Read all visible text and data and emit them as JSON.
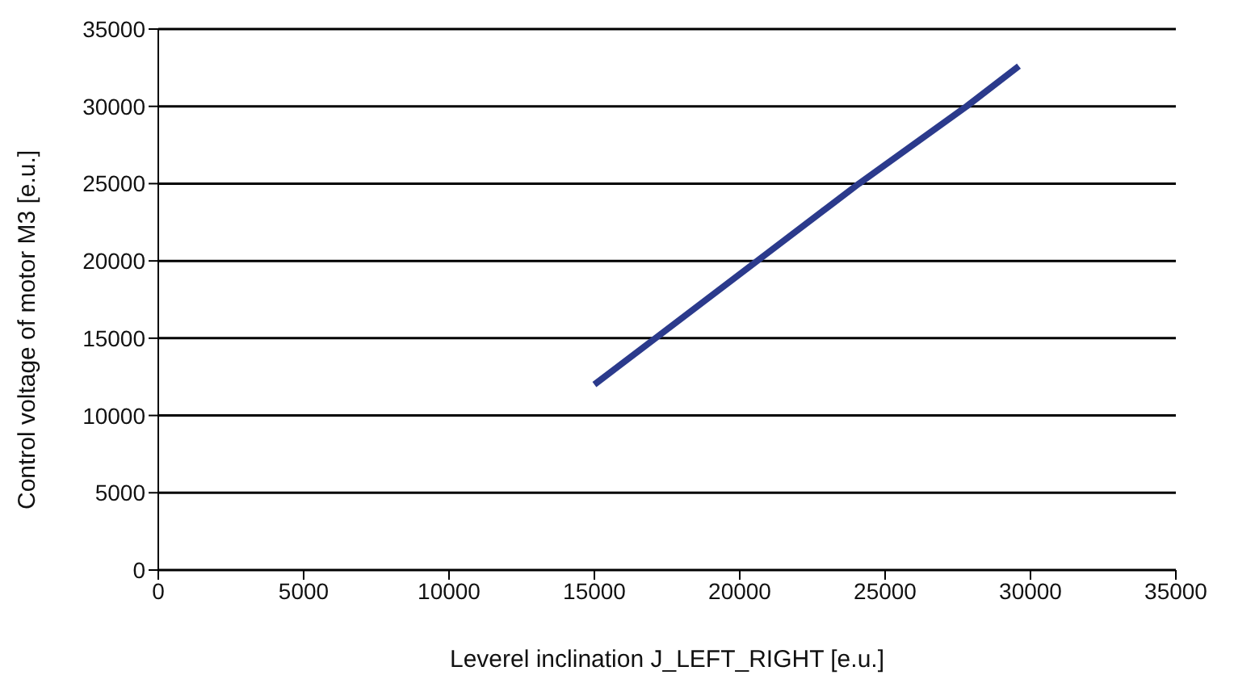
{
  "chart_data": {
    "type": "line",
    "xlabel": "Leverel inclination J_LEFT_RIGHT [e.u.]",
    "ylabel": "Control voltage of motor M3 [e.u.]",
    "x": [
      15000,
      17100,
      20600,
      24100,
      27800,
      29600
    ],
    "series": [
      {
        "color": "#2b3a8c",
        "values": [
          12000,
          15000,
          20000,
          25000,
          30000,
          32600
        ]
      }
    ],
    "xlim": [
      0,
      35000
    ],
    "xticks": [
      0,
      5000,
      10000,
      15000,
      20000,
      25000,
      30000,
      35000
    ],
    "ylim": [
      0,
      35000
    ],
    "yticks": [
      0,
      5000,
      10000,
      15000,
      20000,
      25000,
      30000,
      35000
    ],
    "grid": "y",
    "marker": "none",
    "line_style": "solid",
    "legend": false
  }
}
